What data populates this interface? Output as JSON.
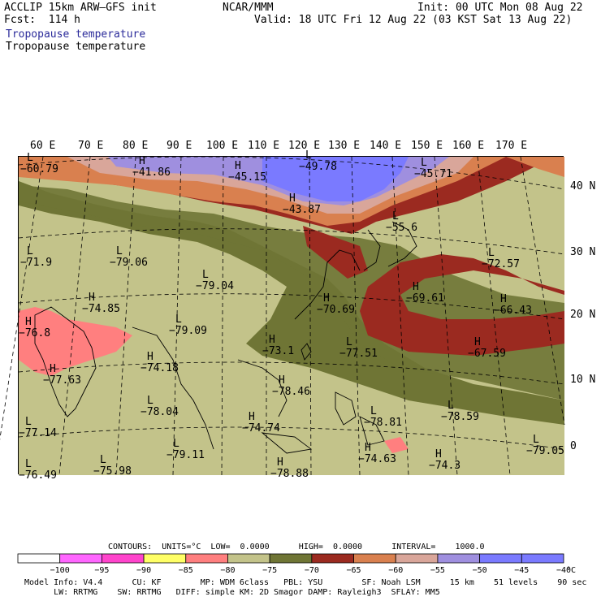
{
  "header": {
    "model": "ACCLIP 15km ARW–GFS init",
    "fcst_label": "Fcst:  114 h",
    "center": "NCAR/MMM",
    "init": "Init: 00 UTC Mon 08 Aug 22",
    "valid": "Valid: 18 UTC Fri 12 Aug 22 (03 KST Sat 13 Aug 22)",
    "field_title_1": "Tropopause temperature",
    "field_title_2": "Tropopause temperature"
  },
  "colors": {
    "title_blue": "#2a2a9a"
  },
  "longitudes": [
    "60 E",
    "70 E",
    "80 E",
    "90 E",
    "100 E",
    "110 E",
    "120 E",
    "130 E",
    "140 E",
    "150 E",
    "160 E",
    "170 E"
  ],
  "latitudes": [
    "40 N",
    "30 N",
    "20 N",
    "10 N",
    "0"
  ],
  "map_labels": [
    {
      "kind": "L",
      "value": "−60.79"
    },
    {
      "kind": "H",
      "value": "−41.86"
    },
    {
      "kind": "H",
      "value": "−45.15"
    },
    {
      "kind": "L",
      "value": "−49.78"
    },
    {
      "kind": "H",
      "value": "−43.87"
    },
    {
      "kind": "L",
      "value": "−45.71"
    },
    {
      "kind": "L",
      "value": "−55.6"
    },
    {
      "kind": "L",
      "value": "−71.9"
    },
    {
      "kind": "L",
      "value": "−79.06"
    },
    {
      "kind": "L",
      "value": "−79.04"
    },
    {
      "kind": "L",
      "value": "−72.57"
    },
    {
      "kind": "H",
      "value": "−74.85"
    },
    {
      "kind": "H",
      "value": "−70.69"
    },
    {
      "kind": "H",
      "value": "−69.61"
    },
    {
      "kind": "H",
      "value": "−66.43"
    },
    {
      "kind": "H",
      "value": "−76.8"
    },
    {
      "kind": "L",
      "value": "−79.09"
    },
    {
      "kind": "H",
      "value": "−73.1"
    },
    {
      "kind": "L",
      "value": "−77.51"
    },
    {
      "kind": "H",
      "value": "−67.59"
    },
    {
      "kind": "H",
      "value": "−77.63"
    },
    {
      "kind": "H",
      "value": "−74.18"
    },
    {
      "kind": "H",
      "value": "−78.46"
    },
    {
      "kind": "L",
      "value": "−77.14"
    },
    {
      "kind": "L",
      "value": "−78.04"
    },
    {
      "kind": "H",
      "value": "−74.74"
    },
    {
      "kind": "L",
      "value": "−78.81"
    },
    {
      "kind": "L",
      "value": "−78.59"
    },
    {
      "kind": "L",
      "value": "−79.05"
    },
    {
      "kind": "L",
      "value": "−79.11"
    },
    {
      "kind": "H",
      "value": "−74.63"
    },
    {
      "kind": "L",
      "value": "−76.49"
    },
    {
      "kind": "L",
      "value": "−75.98"
    },
    {
      "kind": "H",
      "value": "−78.88"
    },
    {
      "kind": "H",
      "value": "−74.3"
    }
  ],
  "contours_line": {
    "label": "CONTOURS:  UNITS=°C  LOW=  0.0000      HIGH=  0.0000      INTERVAL=    1000.0"
  },
  "colorbar": {
    "ticks": [
      "−100",
      "−95",
      "−90",
      "−85",
      "−80",
      "−75",
      "−70",
      "−65",
      "−60",
      "−55",
      "−50",
      "−45",
      "−40"
    ],
    "unit": "°C",
    "colors": [
      "#ffffff",
      "#ff66ff",
      "#ff44cc",
      "#ffff66",
      "#ff7f7f",
      "#c3c38a",
      "#6f7535",
      "#9b2a20",
      "#d9804f",
      "#d9a69a",
      "#9f8fdf",
      "#7a7aff",
      "#7a7aff"
    ]
  },
  "footer": {
    "line1": "Model Info: V4.4      CU: KF        MP: WDM 6class   PBL: YSU        SF: Noah LSM      15 km    51 levels    90 sec",
    "line2": "      LW: RRTMG    SW: RRTMG   DIFF: simple KM: 2D Smagor DAMP: Rayleigh3  SFLAY: MM5"
  }
}
